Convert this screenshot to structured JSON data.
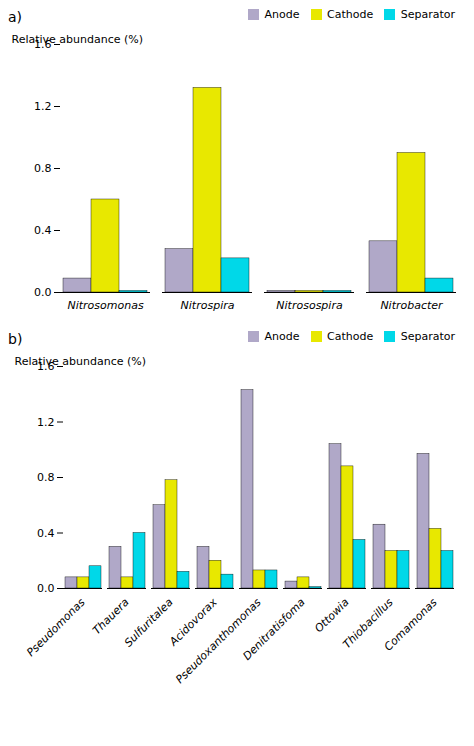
{
  "chart_data": [
    {
      "type": "bar",
      "title": "a)",
      "ylabel": "Relative abundance (%)",
      "categories": [
        "Nitrosomonas",
        "Nitrospira",
        "Nitrosospira",
        "Nitrobacter"
      ],
      "series": [
        {
          "name": "Anode",
          "color": "#b0a8c8",
          "values": [
            0.09,
            0.28,
            0.01,
            0.33
          ]
        },
        {
          "name": "Cathode",
          "color": "#e8e800",
          "values": [
            0.6,
            1.32,
            0.01,
            0.9
          ]
        },
        {
          "name": "Separator",
          "color": "#00d8e8",
          "values": [
            0.01,
            0.22,
            0.01,
            0.09
          ]
        }
      ],
      "ylim": [
        0,
        1.6
      ],
      "yticks": [
        {
          "value": 0,
          "label": "0.0"
        },
        0.4,
        0.8,
        1.2,
        1.6
      ],
      "legend": "upper right"
    },
    {
      "type": "bar",
      "title": "b)",
      "ylabel": "Relative abundance (%)",
      "categories": [
        "Pseudomonas",
        "Thauera",
        "Sulfuritalea",
        "Acidovorax",
        "Pseudoxanthomonas",
        "Denitratisfoma",
        "Ottowia",
        "Thiobacillus",
        "Comamonas"
      ],
      "series": [
        {
          "name": "Anode",
          "color": "#b0a8c8",
          "values": [
            0.08,
            0.3,
            0.6,
            0.3,
            1.43,
            0.05,
            1.04,
            0.46,
            0.97
          ]
        },
        {
          "name": "Cathode",
          "color": "#e8e800",
          "values": [
            0.08,
            0.08,
            0.78,
            0.2,
            0.13,
            0.08,
            0.88,
            0.27,
            0.43
          ]
        },
        {
          "name": "Separator",
          "color": "#00d8e8",
          "values": [
            0.16,
            0.4,
            0.12,
            0.1,
            0.13,
            0.01,
            0.35,
            0.27,
            0.27
          ]
        }
      ],
      "ylim": [
        0,
        1.6
      ],
      "yticks": [
        {
          "value": 0,
          "label": "0.0"
        },
        0.4,
        0.8,
        1.2,
        1.6
      ],
      "legend": "upper right"
    }
  ]
}
